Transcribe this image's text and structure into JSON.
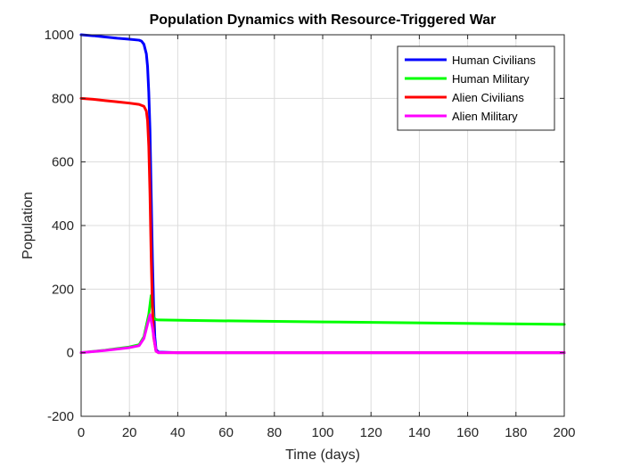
{
  "chart_data": {
    "type": "line",
    "title": "Population Dynamics with Resource-Triggered War",
    "xlabel": "Time (days)",
    "ylabel": "Population",
    "xlim": [
      0,
      200
    ],
    "ylim": [
      -200,
      1000
    ],
    "xticks": [
      0,
      20,
      40,
      60,
      80,
      100,
      120,
      140,
      160,
      180,
      200
    ],
    "yticks": [
      -200,
      0,
      200,
      400,
      600,
      800,
      1000
    ],
    "grid": true,
    "legend_position": "top-right",
    "series": [
      {
        "name": "Human Civilians",
        "color": "#0000ff",
        "points": [
          [
            0,
            1000
          ],
          [
            5,
            997
          ],
          [
            10,
            993
          ],
          [
            15,
            989
          ],
          [
            20,
            986
          ],
          [
            24,
            983
          ],
          [
            25,
            980
          ],
          [
            26,
            970
          ],
          [
            27,
            940
          ],
          [
            27.5,
            900
          ],
          [
            28,
            820
          ],
          [
            28.5,
            700
          ],
          [
            29,
            500
          ],
          [
            29.5,
            300
          ],
          [
            30,
            150
          ],
          [
            30.5,
            50
          ],
          [
            31,
            10
          ],
          [
            32,
            2
          ],
          [
            40,
            0
          ],
          [
            200,
            0
          ]
        ]
      },
      {
        "name": "Human Military",
        "color": "#00ff00",
        "points": [
          [
            0,
            0
          ],
          [
            10,
            8
          ],
          [
            20,
            18
          ],
          [
            24,
            25
          ],
          [
            26,
            50
          ],
          [
            28,
            120
          ],
          [
            29,
            180
          ],
          [
            29.5,
            150
          ],
          [
            30,
            110
          ],
          [
            31,
            104
          ],
          [
            32,
            103
          ],
          [
            50,
            101
          ],
          [
            100,
            97
          ],
          [
            150,
            93
          ],
          [
            200,
            89
          ]
        ]
      },
      {
        "name": "Alien Civilians",
        "color": "#ff0000",
        "points": [
          [
            0,
            800
          ],
          [
            5,
            797
          ],
          [
            10,
            793
          ],
          [
            15,
            789
          ],
          [
            20,
            785
          ],
          [
            24,
            781
          ],
          [
            26,
            775
          ],
          [
            27,
            760
          ],
          [
            27.5,
            730
          ],
          [
            28,
            650
          ],
          [
            28.5,
            500
          ],
          [
            29,
            300
          ],
          [
            29.5,
            150
          ],
          [
            30,
            50
          ],
          [
            31,
            5
          ],
          [
            32,
            0
          ],
          [
            200,
            0
          ]
        ]
      },
      {
        "name": "Alien Military",
        "color": "#ff00ff",
        "points": [
          [
            0,
            0
          ],
          [
            10,
            7
          ],
          [
            20,
            16
          ],
          [
            24,
            22
          ],
          [
            26,
            45
          ],
          [
            27.5,
            90
          ],
          [
            28.5,
            120
          ],
          [
            29.5,
            80
          ],
          [
            30.5,
            30
          ],
          [
            31,
            5
          ],
          [
            32,
            0
          ],
          [
            200,
            0
          ]
        ]
      }
    ]
  }
}
